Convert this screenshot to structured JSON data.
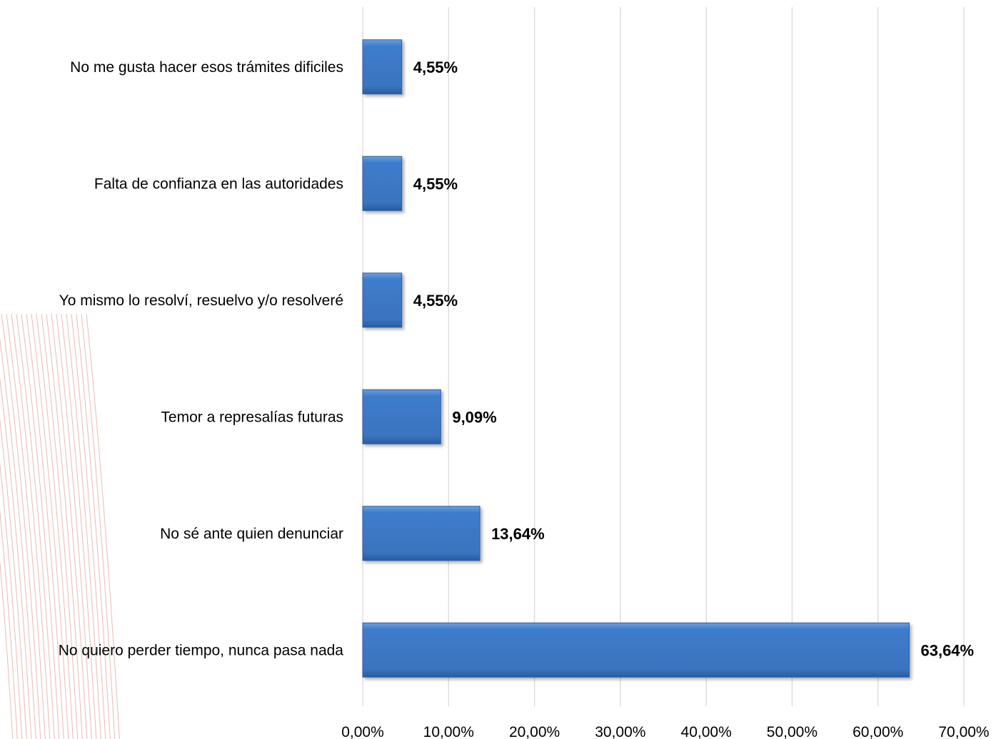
{
  "chart_data": {
    "type": "bar",
    "orientation": "horizontal",
    "categories": [
      "No me gusta hacer esos trámites dificiles",
      "Falta de confianza en las autoridades",
      "Yo mismo lo resolví, resuelvo y/o resolveré",
      "Temor a represalías futuras",
      "No sé ante quien denunciar",
      "No quiero perder tiempo, nunca pasa nada"
    ],
    "values": [
      4.55,
      4.55,
      4.55,
      9.09,
      13.64,
      63.64
    ],
    "value_labels": [
      "4,55%",
      "4,55%",
      "4,55%",
      "9,09%",
      "13,64%",
      "63,64%"
    ],
    "xlim": [
      0,
      70
    ],
    "x_ticks": [
      0,
      10,
      20,
      30,
      40,
      50,
      60,
      70
    ],
    "x_tick_labels": [
      "0,00%",
      "10,00%",
      "20,00%",
      "30,00%",
      "40,00%",
      "50,00%",
      "60,00%",
      "70,00%"
    ],
    "title": "",
    "xlabel": "",
    "ylabel": "",
    "grid": "vertical",
    "legend": "none",
    "bar_color": "#3f7bc8",
    "decoration_color": "#c0392b"
  }
}
